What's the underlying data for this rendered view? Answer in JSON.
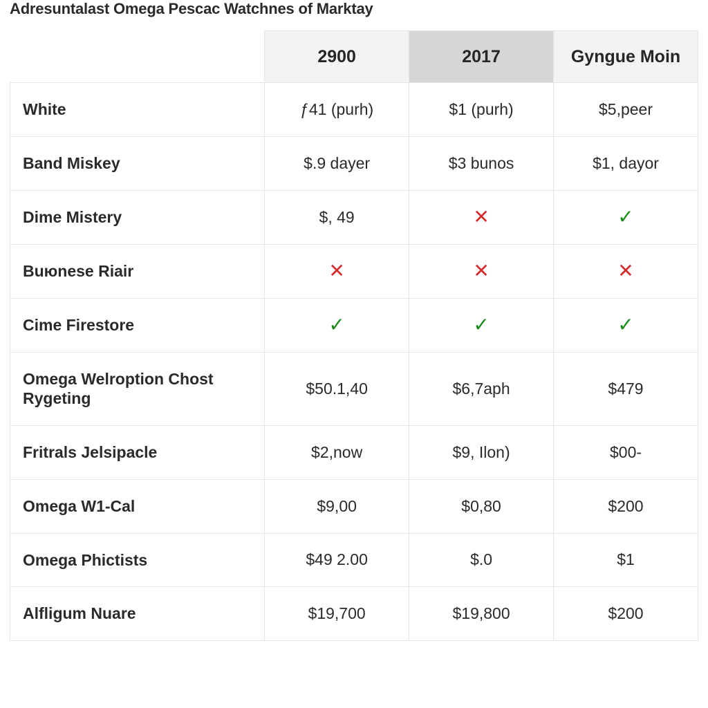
{
  "title": "Adresuntalast Omega Pescac Watchnes of Marktay",
  "table": {
    "type": "table",
    "border_color": "#e6e6e6",
    "header_bg": "#f3f3f3",
    "header_hi_bg": "#d6d6d6",
    "label_fontsize": 23,
    "header_fontsize": 25,
    "check_color": "#1a8a1a",
    "cross_color": "#d22b2b",
    "columns": [
      {
        "label": "",
        "blank": true
      },
      {
        "label": "2900"
      },
      {
        "label": "2017",
        "highlight": true
      },
      {
        "label": "Gyngue Moin"
      }
    ],
    "rows": [
      {
        "label": "White",
        "cells": [
          {
            "text": "ƒ41 (purh)"
          },
          {
            "text": "$1 (purh)"
          },
          {
            "text": "$5,peer"
          }
        ]
      },
      {
        "label": "Band Miskey",
        "cells": [
          {
            "text": "$.9 dayer"
          },
          {
            "text": "$3 bunos"
          },
          {
            "text": "$1, dayor"
          }
        ]
      },
      {
        "label": "Dime Mistery",
        "cells": [
          {
            "text": "$, 49",
            "green": true
          },
          {
            "mark": "cross"
          },
          {
            "mark": "check"
          }
        ]
      },
      {
        "label": "Buюnese Riair",
        "cells": [
          {
            "mark": "cross"
          },
          {
            "mark": "cross"
          },
          {
            "mark": "cross"
          }
        ]
      },
      {
        "label": "Cime Firestore",
        "cells": [
          {
            "mark": "check"
          },
          {
            "mark": "check"
          },
          {
            "mark": "check"
          }
        ]
      },
      {
        "label": "Omega Welroption Chost Rygeting",
        "cells": [
          {
            "text": "$50.1,40"
          },
          {
            "text": "$6,7aph"
          },
          {
            "text": "$479"
          }
        ]
      },
      {
        "label": "Fritrals Jelsipacle",
        "cells": [
          {
            "text": "$2,now"
          },
          {
            "text": "$9, Ilon)"
          },
          {
            "text": "$00-"
          }
        ]
      },
      {
        "label": "Omega W1-Cal",
        "cells": [
          {
            "text": "$9,00"
          },
          {
            "text": "$0,80"
          },
          {
            "text": "$200"
          }
        ]
      },
      {
        "label": "Omega Phictists",
        "cells": [
          {
            "text": "$49 2.00"
          },
          {
            "text": "$.0"
          },
          {
            "text": "$1"
          }
        ]
      },
      {
        "label": "Alfligum Nuare",
        "cells": [
          {
            "text": "$19,700"
          },
          {
            "text": "$19,800"
          },
          {
            "text": "$200"
          }
        ]
      }
    ]
  }
}
